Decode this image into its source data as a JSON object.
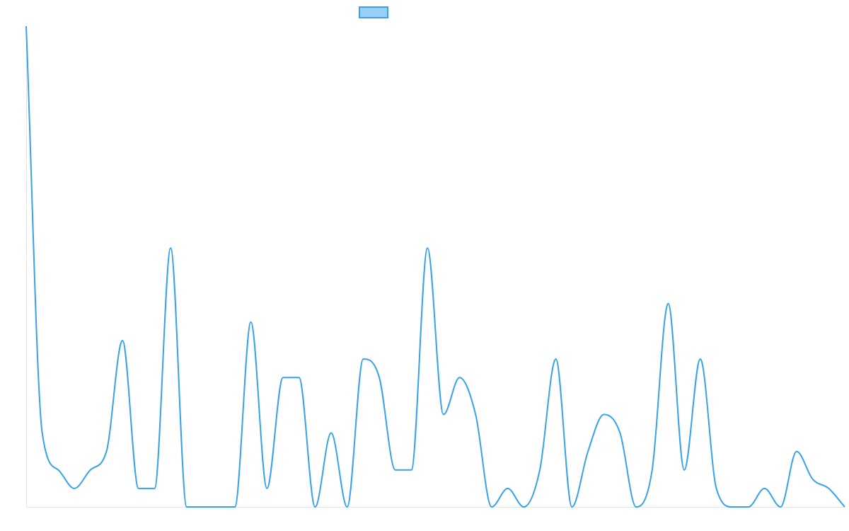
{
  "chart_data": {
    "type": "line",
    "title": "",
    "xlabel": "",
    "ylabel": "",
    "grid": false,
    "legend": {
      "placement": "top-center",
      "entries": [
        ""
      ]
    },
    "colors": {
      "line": "#36a2eb",
      "legend_fill": "#9ad0f5",
      "axis": "#e5e5e5"
    },
    "ylim": [
      0,
      26
    ],
    "x": [
      0,
      1,
      2,
      3,
      4,
      5,
      6,
      7,
      8,
      9,
      10,
      11,
      12,
      13,
      14,
      15,
      16,
      17,
      18,
      19,
      20,
      21,
      22,
      23,
      24,
      25,
      26,
      27,
      28,
      29,
      30,
      31,
      32,
      33,
      34,
      35,
      36,
      37,
      38,
      39,
      40,
      41,
      42,
      43,
      44,
      45,
      46,
      47,
      48,
      49,
      50,
      51
    ],
    "series": [
      {
        "name": "",
        "values": [
          26,
          4,
          2,
          1,
          2,
          3,
          9,
          1,
          1,
          14,
          0,
          0,
          0,
          0,
          10,
          1,
          7,
          7,
          0,
          4,
          0,
          8,
          7,
          2,
          2,
          14,
          5,
          7,
          5,
          0,
          1,
          0,
          2,
          8,
          0,
          3,
          5,
          4,
          0,
          2,
          11,
          2,
          8,
          1,
          0,
          0,
          1,
          0,
          3,
          1.5,
          1,
          0
        ]
      }
    ]
  }
}
